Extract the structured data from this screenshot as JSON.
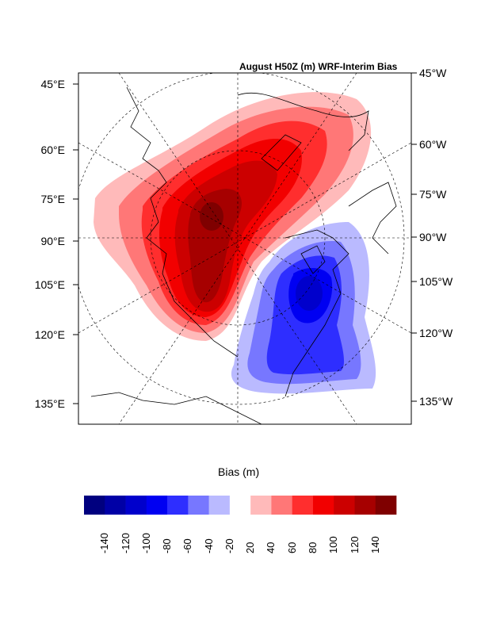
{
  "title": "August H50Z (m) WRF-Interim Bias",
  "left_labels": [
    "45°E",
    "60°E",
    "75°E",
    "90°E",
    "105°E",
    "120°E",
    "135°E"
  ],
  "right_labels": [
    "45°W",
    "60°W",
    "75°W",
    "90°W",
    "105°W",
    "120°W",
    "135°W"
  ],
  "colorbar": {
    "title": "Bias (m)",
    "ticks": [
      "-140",
      "-120",
      "-100",
      "-80",
      "-60",
      "-40",
      "-20",
      "20",
      "40",
      "60",
      "80",
      "100",
      "120",
      "140"
    ],
    "colors": [
      "#00007f",
      "#0000a6",
      "#0000cc",
      "#0000f2",
      "#2e2eff",
      "#7777ff",
      "#babaff",
      "#ffffff",
      "#ffbaba",
      "#ff7777",
      "#ff2e2e",
      "#f20000",
      "#cc0000",
      "#a60000",
      "#7f0000"
    ]
  }
}
